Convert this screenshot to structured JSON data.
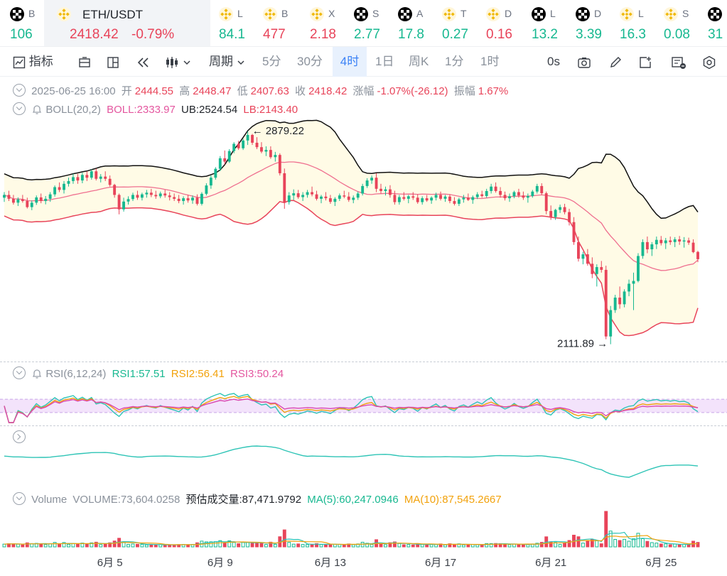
{
  "ticker": [
    {
      "name": "B",
      "value": "106",
      "dir": "up",
      "x": 14,
      "icon": "okx-icon"
    },
    {
      "name": "ETH/USDT",
      "value": "2418.42",
      "change": "-0.79%",
      "dir": "dn",
      "x": 80,
      "icon": "binance-icon",
      "active": true
    },
    {
      "name": "L",
      "value": "84.1",
      "dir": "up",
      "x": 308,
      "icon": "binance-icon"
    },
    {
      "name": "B",
      "value": "477",
      "dir": "dn",
      "x": 370,
      "icon": "binance-icon"
    },
    {
      "name": "X",
      "value": "2.18",
      "dir": "dn",
      "x": 436,
      "icon": "binance-icon"
    },
    {
      "name": "S",
      "value": "2.77",
      "dir": "up",
      "x": 498,
      "icon": "okx-icon"
    },
    {
      "name": "A",
      "value": "17.8",
      "dir": "up",
      "x": 560,
      "icon": "okx-icon"
    },
    {
      "name": "T",
      "value": "0.27",
      "dir": "up",
      "x": 622,
      "icon": "binance-icon"
    },
    {
      "name": "D",
      "value": "0.16",
      "dir": "dn",
      "x": 684,
      "icon": "binance-icon"
    },
    {
      "name": "L",
      "value": "13.2",
      "dir": "up",
      "x": 748,
      "icon": "okx-icon"
    },
    {
      "name": "D",
      "value": "3.39",
      "dir": "up",
      "x": 810,
      "icon": "okx-icon"
    },
    {
      "name": "L",
      "value": "16.3",
      "dir": "up",
      "x": 872,
      "icon": "binance-icon"
    },
    {
      "name": "S",
      "value": "0.08",
      "dir": "up",
      "x": 934,
      "icon": "binance-icon"
    },
    {
      "name": "",
      "value": "31",
      "dir": "up",
      "x": 996,
      "icon": "okx-icon"
    }
  ],
  "toolbar": {
    "indicators": "指标",
    "period_menu": "周期",
    "periods": [
      "5分",
      "30分",
      "4时",
      "1日",
      "周K",
      "1分",
      "1时"
    ],
    "selected_period": "4时",
    "countdown": "0s"
  },
  "ohlc_row": {
    "datetime": "2025-06-25 16:00",
    "open_label": "开",
    "open": "2444.55",
    "high_label": "高",
    "high": "2448.47",
    "low_label": "低",
    "low": "2407.63",
    "close_label": "收",
    "close": "2418.42",
    "change_label": "涨幅",
    "change": "-1.07%(-26.12)",
    "amplitude_label": "振幅",
    "amplitude": "1.67%"
  },
  "boll_row": {
    "name": "BOLL(20,2)",
    "boll": "BOLL:2333.97",
    "ub": "UB:2524.54",
    "lb": "LB:2143.40"
  },
  "rsi_row": {
    "name": "RSI(6,12,24)",
    "rsi1": "RSI1:57.51",
    "rsi2": "RSI2:56.41",
    "rsi3": "RSI3:50.24"
  },
  "volume_row": {
    "name": "Volume",
    "volume": "VOLUME:73,604.0258",
    "est": "预估成交量:87,471.9792",
    "ma5": "MA(5):60,247.0946",
    "ma10": "MA(10):87,545.2667"
  },
  "colors": {
    "up": "#17b890",
    "down": "#e8445a",
    "boll_mid": "#e8445a",
    "boll_band": "#111111",
    "band_fill": "#fffbe6",
    "rsi1": "#2ec4b6",
    "rsi2": "#f2a20c",
    "rsi3": "#d946b0",
    "rsi_zone": "#f3e3fb",
    "osc": "#2ec4b6",
    "ma5": "#2ec4b6",
    "ma10": "#f2a20c"
  },
  "chart_data": {
    "type": "candlestick",
    "interval": "4h",
    "x_ticks": [
      "6月 5",
      "6月 9",
      "6月 13",
      "6月 17",
      "6月 21",
      "6月 25"
    ],
    "x_tick_index": [
      23,
      47,
      71,
      95,
      119,
      143
    ],
    "price_max_label": "2879.22",
    "price_min_label": "2111.89",
    "candles": [
      [
        2640,
        2660,
        2625,
        2650
      ],
      [
        2650,
        2665,
        2628,
        2636
      ],
      [
        2636,
        2650,
        2615,
        2622
      ],
      [
        2622,
        2641,
        2610,
        2634
      ],
      [
        2634,
        2650,
        2622,
        2628
      ],
      [
        2628,
        2640,
        2601,
        2606
      ],
      [
        2606,
        2630,
        2595,
        2622
      ],
      [
        2622,
        2648,
        2614,
        2641
      ],
      [
        2641,
        2655,
        2620,
        2628
      ],
      [
        2628,
        2646,
        2616,
        2636
      ],
      [
        2636,
        2660,
        2625,
        2652
      ],
      [
        2652,
        2684,
        2644,
        2678
      ],
      [
        2678,
        2695,
        2660,
        2668
      ],
      [
        2668,
        2700,
        2655,
        2690
      ],
      [
        2690,
        2712,
        2680,
        2700
      ],
      [
        2700,
        2726,
        2690,
        2714
      ],
      [
        2714,
        2726,
        2690,
        2702
      ],
      [
        2702,
        2730,
        2692,
        2722
      ],
      [
        2722,
        2735,
        2700,
        2712
      ],
      [
        2712,
        2742,
        2705,
        2735
      ],
      [
        2735,
        2745,
        2702,
        2708
      ],
      [
        2708,
        2725,
        2695,
        2716
      ],
      [
        2716,
        2735,
        2700,
        2708
      ],
      [
        2708,
        2720,
        2680,
        2686
      ],
      [
        2686,
        2690,
        2640,
        2650
      ],
      [
        2650,
        2655,
        2580,
        2598
      ],
      [
        2598,
        2640,
        2590,
        2626
      ],
      [
        2626,
        2645,
        2615,
        2635
      ],
      [
        2635,
        2658,
        2628,
        2650
      ],
      [
        2650,
        2665,
        2632,
        2640
      ],
      [
        2640,
        2658,
        2630,
        2652
      ],
      [
        2652,
        2668,
        2640,
        2658
      ],
      [
        2658,
        2672,
        2642,
        2650
      ],
      [
        2650,
        2665,
        2636,
        2645
      ],
      [
        2645,
        2662,
        2638,
        2655
      ],
      [
        2655,
        2668,
        2640,
        2648
      ],
      [
        2648,
        2660,
        2630,
        2642
      ],
      [
        2642,
        2655,
        2628,
        2636
      ],
      [
        2636,
        2650,
        2620,
        2628
      ],
      [
        2628,
        2645,
        2615,
        2638
      ],
      [
        2638,
        2650,
        2622,
        2630
      ],
      [
        2630,
        2648,
        2618,
        2640
      ],
      [
        2640,
        2652,
        2612,
        2618
      ],
      [
        2618,
        2660,
        2612,
        2654
      ],
      [
        2654,
        2692,
        2648,
        2684
      ],
      [
        2684,
        2720,
        2672,
        2712
      ],
      [
        2712,
        2750,
        2705,
        2744
      ],
      [
        2744,
        2790,
        2736,
        2782
      ],
      [
        2782,
        2810,
        2760,
        2770
      ],
      [
        2770,
        2815,
        2765,
        2808
      ],
      [
        2808,
        2840,
        2800,
        2834
      ],
      [
        2834,
        2845,
        2812,
        2818
      ],
      [
        2818,
        2852,
        2812,
        2846
      ],
      [
        2846,
        2879,
        2830,
        2866
      ],
      [
        2866,
        2870,
        2830,
        2838
      ],
      [
        2838,
        2858,
        2815,
        2822
      ],
      [
        2822,
        2840,
        2800,
        2806
      ],
      [
        2806,
        2825,
        2790,
        2812
      ],
      [
        2812,
        2825,
        2780,
        2786
      ],
      [
        2786,
        2805,
        2770,
        2794
      ],
      [
        2794,
        2800,
        2720,
        2728
      ],
      [
        2728,
        2745,
        2600,
        2624
      ],
      [
        2624,
        2660,
        2615,
        2648
      ],
      [
        2648,
        2670,
        2632,
        2656
      ],
      [
        2656,
        2668,
        2636,
        2642
      ],
      [
        2642,
        2660,
        2628,
        2650
      ],
      [
        2650,
        2668,
        2640,
        2660
      ],
      [
        2660,
        2680,
        2645,
        2652
      ],
      [
        2652,
        2665,
        2630,
        2636
      ],
      [
        2636,
        2650,
        2620,
        2644
      ],
      [
        2644,
        2660,
        2630,
        2638
      ],
      [
        2638,
        2650,
        2618,
        2625
      ],
      [
        2625,
        2642,
        2610,
        2636
      ],
      [
        2636,
        2655,
        2628,
        2648
      ],
      [
        2648,
        2665,
        2638,
        2644
      ],
      [
        2644,
        2660,
        2625,
        2632
      ],
      [
        2632,
        2648,
        2620,
        2640
      ],
      [
        2640,
        2662,
        2632,
        2655
      ],
      [
        2655,
        2690,
        2648,
        2682
      ],
      [
        2682,
        2710,
        2675,
        2702
      ],
      [
        2702,
        2720,
        2690,
        2712
      ],
      [
        2712,
        2728,
        2660,
        2672
      ],
      [
        2672,
        2690,
        2655,
        2664
      ],
      [
        2664,
        2680,
        2648,
        2670
      ],
      [
        2670,
        2685,
        2640,
        2650
      ],
      [
        2650,
        2665,
        2615,
        2624
      ],
      [
        2624,
        2650,
        2615,
        2642
      ],
      [
        2642,
        2660,
        2630,
        2636
      ],
      [
        2636,
        2650,
        2620,
        2645
      ],
      [
        2645,
        2660,
        2632,
        2640
      ],
      [
        2640,
        2652,
        2618,
        2624
      ],
      [
        2624,
        2645,
        2615,
        2638
      ],
      [
        2638,
        2650,
        2625,
        2630
      ],
      [
        2630,
        2645,
        2618,
        2640
      ],
      [
        2640,
        2658,
        2630,
        2650
      ],
      [
        2650,
        2662,
        2630,
        2636
      ],
      [
        2636,
        2650,
        2625,
        2644
      ],
      [
        2644,
        2652,
        2620,
        2628
      ],
      [
        2628,
        2642,
        2612,
        2618
      ],
      [
        2618,
        2640,
        2610,
        2634
      ],
      [
        2634,
        2650,
        2622,
        2640
      ],
      [
        2640,
        2655,
        2628,
        2632
      ],
      [
        2632,
        2648,
        2618,
        2642
      ],
      [
        2642,
        2660,
        2635,
        2652
      ],
      [
        2652,
        2665,
        2640,
        2646
      ],
      [
        2646,
        2672,
        2640,
        2664
      ],
      [
        2664,
        2690,
        2655,
        2680
      ],
      [
        2680,
        2695,
        2658,
        2664
      ],
      [
        2664,
        2678,
        2640,
        2650
      ],
      [
        2650,
        2662,
        2630,
        2638
      ],
      [
        2638,
        2655,
        2625,
        2645
      ],
      [
        2645,
        2665,
        2638,
        2660
      ],
      [
        2660,
        2672,
        2640,
        2648
      ],
      [
        2648,
        2662,
        2632,
        2640
      ],
      [
        2640,
        2655,
        2622,
        2646
      ],
      [
        2646,
        2668,
        2640,
        2662
      ],
      [
        2662,
        2690,
        2655,
        2682
      ],
      [
        2682,
        2692,
        2650,
        2656
      ],
      [
        2656,
        2662,
        2580,
        2592
      ],
      [
        2592,
        2612,
        2560,
        2570
      ],
      [
        2570,
        2600,
        2560,
        2596
      ],
      [
        2596,
        2615,
        2585,
        2606
      ],
      [
        2606,
        2618,
        2580,
        2588
      ],
      [
        2588,
        2600,
        2540,
        2552
      ],
      [
        2552,
        2570,
        2470,
        2480
      ],
      [
        2480,
        2500,
        2410,
        2420
      ],
      [
        2420,
        2445,
        2400,
        2436
      ],
      [
        2436,
        2455,
        2395,
        2402
      ],
      [
        2402,
        2425,
        2350,
        2365
      ],
      [
        2365,
        2400,
        2320,
        2390
      ],
      [
        2390,
        2412,
        2370,
        2380
      ],
      [
        2380,
        2395,
        2130,
        2140
      ],
      [
        2140,
        2250,
        2112,
        2235
      ],
      [
        2235,
        2290,
        2225,
        2280
      ],
      [
        2280,
        2320,
        2240,
        2256
      ],
      [
        2256,
        2310,
        2245,
        2302
      ],
      [
        2302,
        2345,
        2285,
        2330
      ],
      [
        2330,
        2370,
        2235,
        2340
      ],
      [
        2340,
        2440,
        2335,
        2430
      ],
      [
        2430,
        2490,
        2420,
        2480
      ],
      [
        2480,
        2500,
        2440,
        2454
      ],
      [
        2454,
        2480,
        2430,
        2472
      ],
      [
        2472,
        2500,
        2455,
        2488
      ],
      [
        2488,
        2502,
        2468,
        2476
      ],
      [
        2476,
        2495,
        2455,
        2486
      ],
      [
        2486,
        2500,
        2470,
        2480
      ],
      [
        2480,
        2498,
        2462,
        2490
      ],
      [
        2490,
        2502,
        2470,
        2482
      ],
      [
        2482,
        2498,
        2460,
        2486
      ],
      [
        2486,
        2496,
        2470,
        2478
      ],
      [
        2478,
        2490,
        2440,
        2444
      ],
      [
        2444.55,
        2448.47,
        2407.63,
        2418.42
      ]
    ]
  }
}
